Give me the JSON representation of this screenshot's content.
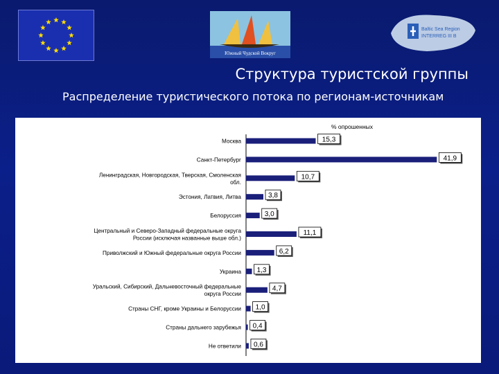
{
  "header": {
    "title": "Структура туристской группы",
    "subtitle": "Распределение туристического потока по регионам-источникам"
  },
  "logos": {
    "center_text": "Южный Чудской Вокруг",
    "right_text_1": "Baltic Sea Region",
    "right_text_2": "INTERREG III B"
  },
  "colors": {
    "background": "#0b1f8a",
    "bar": "#1a1f7a",
    "panel": "#ffffff"
  },
  "chart_data": {
    "type": "bar",
    "orientation": "horizontal",
    "unit_label": "% опрошенных",
    "categories": [
      [
        "Москва"
      ],
      [
        "Санкт-Петербург"
      ],
      [
        "Ленинградская, Новгородская, Тверская, Смоленская",
        "обл."
      ],
      [
        "Эстония, Латвия, Литва"
      ],
      [
        "Белоруссия"
      ],
      [
        "Центральный и Северо-Западный федеральные округа",
        "России (исключая названные выше обл.)"
      ],
      [
        "Приволжский и Южный федеральные округа России"
      ],
      [
        "Украина"
      ],
      [
        "Уральский, Сибирский, Дальневосточный федеральные",
        "округа России"
      ],
      [
        "Страны СНГ, кроме Украины и Белоруссии"
      ],
      [
        "Страны дальнего зарубежья"
      ],
      [
        "Не ответили"
      ]
    ],
    "values": [
      15.3,
      41.9,
      10.7,
      3.8,
      3.0,
      11.1,
      6.2,
      1.3,
      4.7,
      1.0,
      0.4,
      0.6
    ],
    "value_labels": [
      "15,3",
      "41,9",
      "10,7",
      "3,8",
      "3,0",
      "11,1",
      "6,2",
      "1,3",
      "4,7",
      "1,0",
      "0,4",
      "0,6"
    ],
    "xlim": [
      0,
      42
    ],
    "grid": false
  }
}
